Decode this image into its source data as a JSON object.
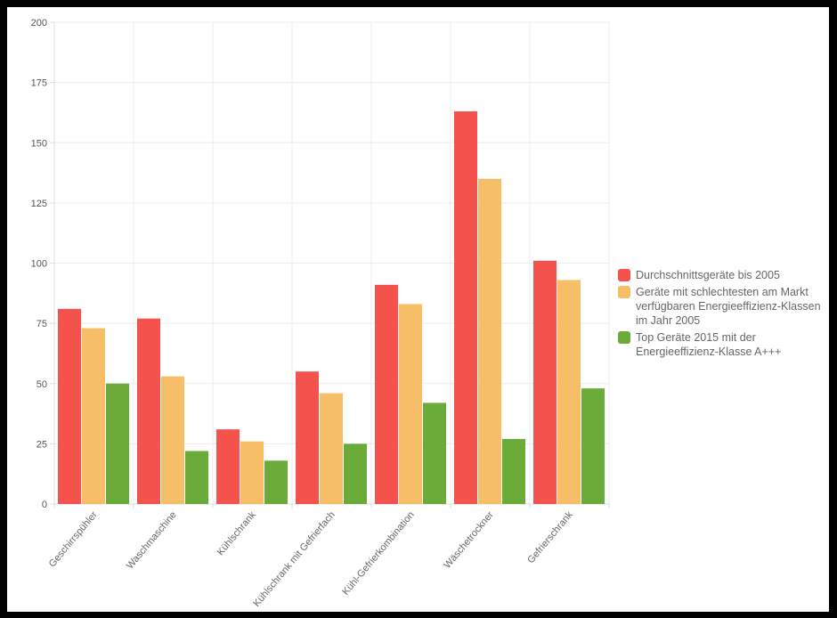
{
  "chart_data": {
    "type": "bar",
    "categories": [
      "Geschirrspühler",
      "Waschmaschine",
      "Kühlschrank",
      "Kühlschrank mit Gefrierfach",
      "Kühl-Gefrierkombination",
      "Wäschetrockner",
      "Gefrierschrank"
    ],
    "series": [
      {
        "name": "Durchschnittsgeräte bis 2005",
        "color": "#f4524d",
        "values": [
          81,
          77,
          31,
          55,
          91,
          163,
          101
        ]
      },
      {
        "name": "Geräte mit schlechtesten am Markt verfügbaren Energieeffizienz-Klassen im Jahr 2005",
        "color": "#f7be68",
        "values": [
          73,
          53,
          26,
          46,
          83,
          135,
          93
        ]
      },
      {
        "name": "Top Geräte 2015 mit der Energieeffizienz-Klasse A+++",
        "color": "#6aab3a",
        "values": [
          50,
          22,
          18,
          25,
          42,
          27,
          48
        ]
      }
    ],
    "ylim": [
      0,
      200
    ],
    "yticks": [
      "0",
      "25",
      "50",
      "75",
      "100",
      "125",
      "150",
      "175",
      "200"
    ],
    "grid": true,
    "legend_position": "right"
  }
}
